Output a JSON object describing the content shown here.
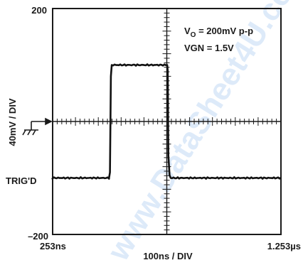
{
  "chart_data": {
    "type": "line",
    "y_top_label": "200",
    "y_bottom_label": "–200",
    "ylabel": "40mV / DIV",
    "x_left_label": "253ns",
    "x_right_label": "1.253µs",
    "xlabel": "100ns / DIV",
    "trig_label": "TRIG'D",
    "annotation": {
      "line1_main": "V",
      "line1_sub": "O",
      "line1_rest": " = 200mV p-p",
      "line2": "VGN = 1.5V"
    },
    "watermark": "www.DataSheet4U.com",
    "xlim": [
      253,
      1253
    ],
    "ylim": [
      -200,
      200
    ],
    "grid": false,
    "series": [
      {
        "x": [
          253,
          252,
          500,
          504,
          508,
          512,
          755,
          757,
          760,
          765,
          770,
          1253
        ],
        "y": [
          -100,
          -100,
          -100,
          -90,
          80,
          100,
          100,
          90,
          -60,
          -95,
          -100,
          -100
        ]
      }
    ]
  }
}
